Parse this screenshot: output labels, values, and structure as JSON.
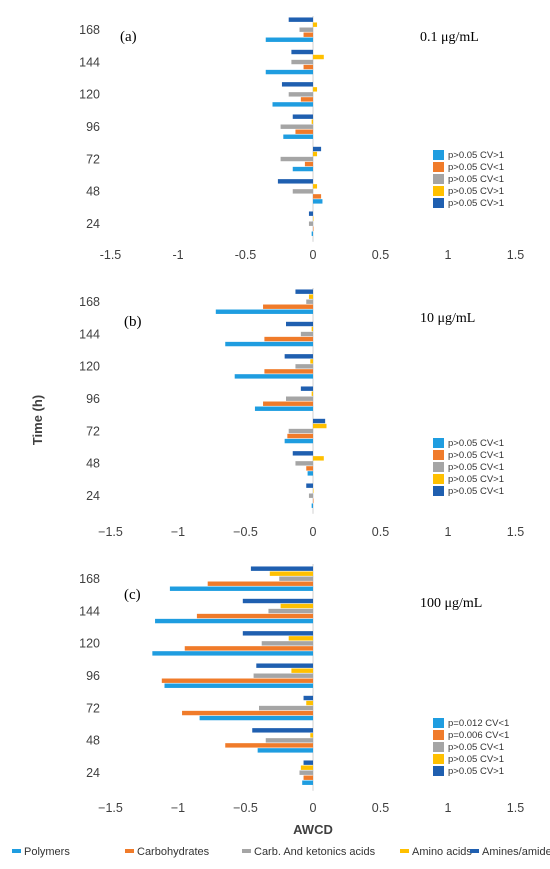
{
  "chart_data": [
    {
      "type": "bar",
      "orientation": "horizontal",
      "panel_label": "(a)",
      "concentration": "0.1 μg/mL",
      "categories": [
        "24",
        "48",
        "72",
        "96",
        "120",
        "144",
        "168"
      ],
      "xlim": [
        -1.5,
        1.5
      ],
      "x_ticks": [
        "-1.5",
        "-1",
        "-0.5",
        "0",
        "0.5",
        "1",
        "1.5"
      ],
      "series": [
        {
          "name": "Polymers",
          "color": "#1f9de0",
          "values": [
            -0.01,
            0.07,
            -0.15,
            -0.22,
            -0.3,
            -0.35,
            -0.35
          ]
        },
        {
          "name": "Carbohydrates",
          "color": "#f07b2a",
          "values": [
            0.0,
            0.06,
            -0.06,
            -0.13,
            -0.09,
            -0.07,
            -0.07
          ]
        },
        {
          "name": "Carb. And ketonics acids",
          "color": "#a5a5a5",
          "values": [
            -0.03,
            -0.15,
            -0.24,
            -0.24,
            -0.18,
            -0.16,
            -0.1
          ]
        },
        {
          "name": "Amino acids",
          "color": "#ffc000",
          "values": [
            0.0,
            0.03,
            0.03,
            -0.01,
            0.03,
            0.08,
            0.03
          ]
        },
        {
          "name": "Amines/amides",
          "color": "#1f5fb0",
          "values": [
            -0.03,
            -0.26,
            0.06,
            -0.15,
            -0.23,
            -0.16,
            -0.18
          ]
        }
      ],
      "pvalues": [
        "p>0.05 CV>1",
        "p>0.05 CV<1",
        "p>0.05 CV<1",
        "p>0.05 CV>1",
        "p>0.05 CV>1"
      ]
    },
    {
      "type": "bar",
      "orientation": "horizontal",
      "panel_label": "(b)",
      "concentration": "10 μg/mL",
      "categories": [
        "24",
        "48",
        "72",
        "96",
        "120",
        "144",
        "168"
      ],
      "xlim": [
        -1.5,
        1.5
      ],
      "x_ticks": [
        "−1.5",
        "−1",
        "−0.5",
        "0",
        "0.5",
        "1",
        "1.5"
      ],
      "series": [
        {
          "name": "Polymers",
          "color": "#1f9de0",
          "values": [
            -0.01,
            -0.04,
            -0.21,
            -0.43,
            -0.58,
            -0.65,
            -0.72
          ]
        },
        {
          "name": "Carbohydrates",
          "color": "#f07b2a",
          "values": [
            0.0,
            -0.05,
            -0.19,
            -0.37,
            -0.36,
            -0.36,
            -0.37
          ]
        },
        {
          "name": "Carb. And ketonics acids",
          "color": "#a5a5a5",
          "values": [
            -0.03,
            -0.13,
            -0.18,
            -0.2,
            -0.13,
            -0.09,
            -0.05
          ]
        },
        {
          "name": "Amino acids",
          "color": "#ffc000",
          "values": [
            0.0,
            0.08,
            0.1,
            -0.01,
            -0.02,
            -0.01,
            -0.03
          ]
        },
        {
          "name": "Amines/amides",
          "color": "#1f5fb0",
          "values": [
            -0.05,
            -0.15,
            0.09,
            -0.09,
            -0.21,
            -0.2,
            -0.13
          ]
        }
      ],
      "pvalues": [
        "p>0.05 CV<1",
        "p>0.05 CV<1",
        "p>0.05 CV<1",
        "p>0.05 CV>1",
        "p>0.05 CV<1"
      ]
    },
    {
      "type": "bar",
      "orientation": "horizontal",
      "panel_label": "(c)",
      "concentration": "100 μg/mL",
      "categories": [
        "24",
        "48",
        "72",
        "96",
        "120",
        "144",
        "168"
      ],
      "xlim": [
        -1.5,
        1.5
      ],
      "x_ticks": [
        "−1.5",
        "−1",
        "−0.5",
        "0",
        "0.5",
        "1",
        "1.5"
      ],
      "series": [
        {
          "name": "Polymers",
          "color": "#1f9de0",
          "values": [
            -0.08,
            -0.41,
            -0.84,
            -1.1,
            -1.19,
            -1.17,
            -1.06
          ]
        },
        {
          "name": "Carbohydrates",
          "color": "#f07b2a",
          "values": [
            -0.07,
            -0.65,
            -0.97,
            -1.12,
            -0.95,
            -0.86,
            -0.78
          ]
        },
        {
          "name": "Carb. And ketonics acids",
          "color": "#a5a5a5",
          "values": [
            -0.1,
            -0.35,
            -0.4,
            -0.44,
            -0.38,
            -0.33,
            -0.25
          ]
        },
        {
          "name": "Amino acids",
          "color": "#ffc000",
          "values": [
            -0.09,
            -0.02,
            -0.05,
            -0.16,
            -0.18,
            -0.24,
            -0.32
          ]
        },
        {
          "name": "Amines/amides",
          "color": "#1f5fb0",
          "values": [
            -0.07,
            -0.45,
            -0.07,
            -0.42,
            -0.52,
            -0.52,
            -0.46
          ]
        }
      ],
      "pvalues": [
        "p=0.012 CV<1",
        "p=0.006 CV<1",
        "p>0.05 CV<1",
        "p>0.05 CV>1",
        "p>0.05 CV>1"
      ]
    }
  ],
  "y_axis_title": "Time (h)",
  "x_axis_title": "AWCD",
  "legend": [
    {
      "name": "Polymers",
      "color": "#1f9de0"
    },
    {
      "name": "Carbohydrates",
      "color": "#f07b2a"
    },
    {
      "name": "Carb. And ketonics acids",
      "color": "#a5a5a5"
    },
    {
      "name": "Amino acids",
      "color": "#ffc000"
    },
    {
      "name": "Amines/amides",
      "color": "#1f5fb0"
    }
  ]
}
